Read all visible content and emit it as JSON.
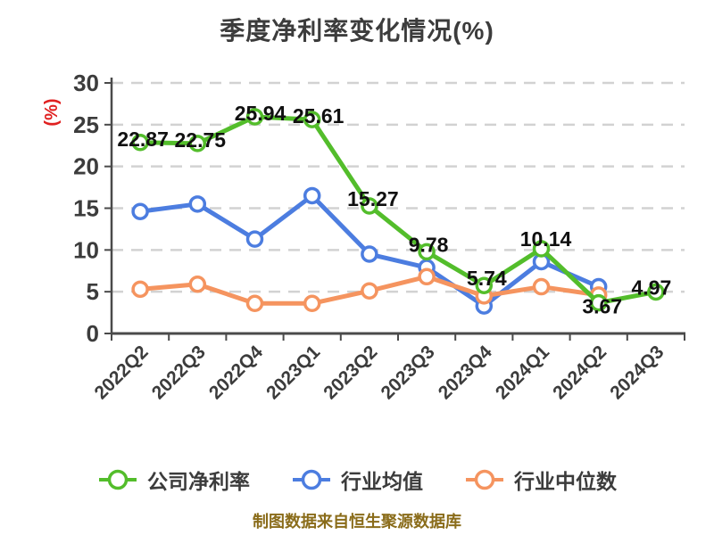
{
  "footer": {
    "caption": "制图数据来自恒生聚源数据库"
  },
  "chart_data": {
    "type": "line",
    "title": "季度净利率变化情况(%)",
    "ylabel": "(%)",
    "ylim": [
      0,
      30
    ],
    "yticks": [
      0,
      5,
      10,
      15,
      20,
      25,
      30
    ],
    "grid": "horizontal-dashed",
    "legend_position": "bottom",
    "categories": [
      "2022Q2",
      "2022Q3",
      "2022Q4",
      "2023Q1",
      "2023Q2",
      "2023Q3",
      "2023Q4",
      "2024Q1",
      "2024Q2",
      "2024Q3"
    ],
    "series": [
      {
        "name": "公司净利率",
        "color": "#53bd2b",
        "labeled": true,
        "values": [
          22.87,
          22.75,
          25.94,
          25.61,
          15.27,
          9.78,
          5.74,
          10.14,
          3.67,
          4.97
        ]
      },
      {
        "name": "行业均值",
        "color": "#4c7de0",
        "labeled": false,
        "values": [
          14.6,
          15.5,
          11.3,
          16.5,
          9.5,
          7.9,
          3.3,
          8.6,
          5.6,
          null
        ]
      },
      {
        "name": "行业中位数",
        "color": "#f5945f",
        "labeled": false,
        "values": [
          5.3,
          5.9,
          3.6,
          3.6,
          5.1,
          6.8,
          4.5,
          5.6,
          4.6,
          null
        ]
      }
    ],
    "colors": {
      "grid": "#d2d2d2",
      "axis": "#4a4a4a",
      "tick_label": "#3c3c3c",
      "data_label": "#101010",
      "unit_label": "#e02121",
      "caption": "#8a6c1a"
    }
  }
}
